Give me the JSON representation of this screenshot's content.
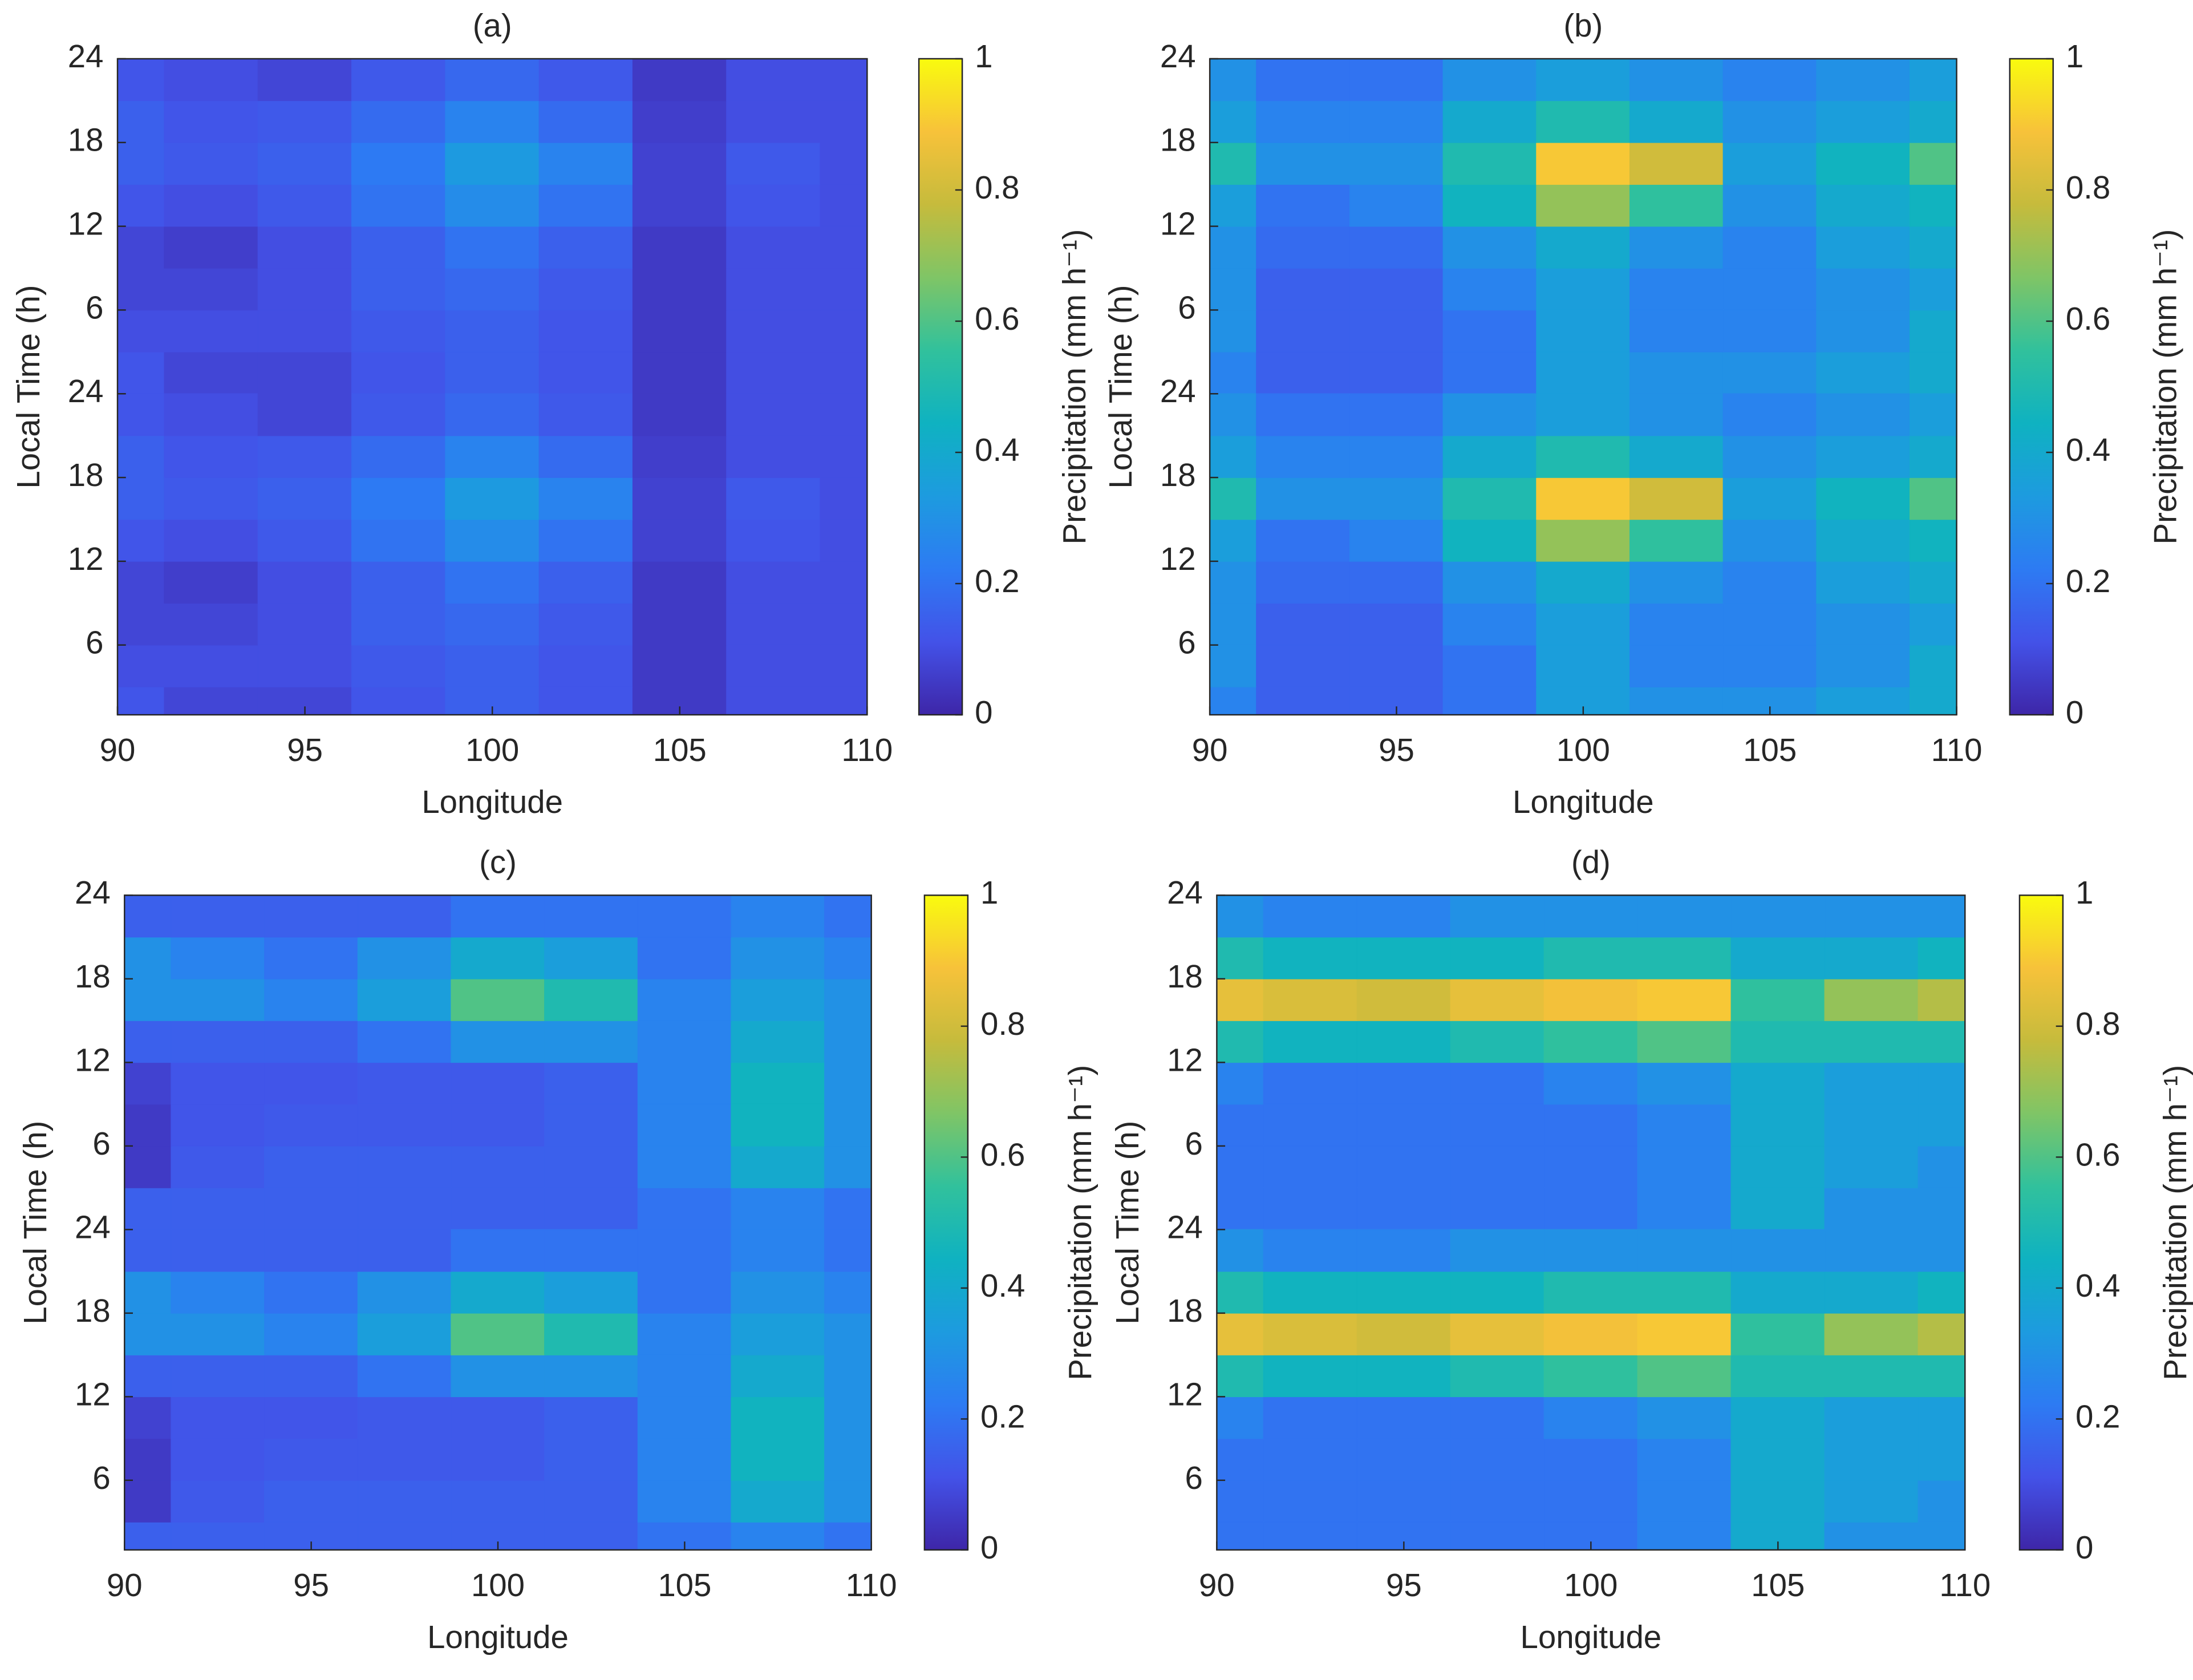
{
  "chart_data": [
    {
      "type": "contour",
      "title": "(a)",
      "xlabel": "Longitude",
      "ylabel": "Local Time (h)",
      "colorbar_label": "Precipitation (mm h⁻¹)",
      "x": [
        90,
        92.5,
        95,
        97.5,
        100,
        102.5,
        105,
        107.5,
        110
      ],
      "y": [
        3,
        6,
        9,
        12,
        15,
        18,
        21,
        24
      ],
      "z": [
        [
          0.12,
          0.08,
          0.08,
          0.12,
          0.15,
          0.12,
          0.05,
          0.1,
          0.1
        ],
        [
          0.1,
          0.1,
          0.1,
          0.13,
          0.15,
          0.12,
          0.05,
          0.1,
          0.1
        ],
        [
          0.08,
          0.08,
          0.1,
          0.15,
          0.17,
          0.13,
          0.05,
          0.1,
          0.1
        ],
        [
          0.08,
          0.06,
          0.1,
          0.15,
          0.2,
          0.15,
          0.05,
          0.1,
          0.1
        ],
        [
          0.12,
          0.1,
          0.13,
          0.2,
          0.28,
          0.2,
          0.07,
          0.12,
          0.1
        ],
        [
          0.15,
          0.13,
          0.15,
          0.22,
          0.33,
          0.25,
          0.07,
          0.13,
          0.1
        ],
        [
          0.15,
          0.12,
          0.13,
          0.18,
          0.25,
          0.18,
          0.06,
          0.1,
          0.1
        ],
        [
          0.12,
          0.1,
          0.08,
          0.13,
          0.17,
          0.13,
          0.05,
          0.1,
          0.1
        ]
      ],
      "xlim": [
        90,
        110
      ],
      "xticks": [
        90,
        95,
        100,
        105,
        110
      ],
      "ylim": [
        1,
        48
      ],
      "yticks": [
        6,
        12,
        18,
        24,
        {
          "value": 30,
          "label": "6"
        },
        {
          "value": 36,
          "label": "12"
        },
        {
          "value": 42,
          "label": "18"
        },
        {
          "value": 48,
          "label": "24"
        }
      ],
      "clim": [
        0,
        1
      ],
      "cticks": [
        0,
        0.2,
        0.4,
        0.6,
        0.8,
        1
      ],
      "colormap": [
        "#3e26a8",
        "#4352e8",
        "#2d7bf3",
        "#1d9bdf",
        "#0fb2c1",
        "#31c19c",
        "#7fc566",
        "#c6bb3c",
        "#f7c23a",
        "#f9fb0e"
      ]
    },
    {
      "type": "contour",
      "title": "(b)",
      "xlabel": "Longitude",
      "ylabel": "Local Time (h)",
      "colorbar_label": "Precipitation (mm h⁻¹)",
      "x": [
        90,
        92.5,
        95,
        97.5,
        100,
        102.5,
        105,
        107.5,
        110
      ],
      "y": [
        3,
        6,
        9,
        12,
        15,
        18,
        21,
        24
      ],
      "z": [
        [
          0.25,
          0.15,
          0.15,
          0.2,
          0.35,
          0.3,
          0.3,
          0.35,
          0.4
        ],
        [
          0.3,
          0.15,
          0.15,
          0.2,
          0.35,
          0.25,
          0.25,
          0.3,
          0.4
        ],
        [
          0.3,
          0.15,
          0.15,
          0.25,
          0.35,
          0.25,
          0.25,
          0.3,
          0.35
        ],
        [
          0.3,
          0.18,
          0.18,
          0.3,
          0.4,
          0.3,
          0.25,
          0.35,
          0.4
        ],
        [
          0.35,
          0.2,
          0.25,
          0.45,
          0.7,
          0.55,
          0.3,
          0.4,
          0.45
        ],
        [
          0.5,
          0.3,
          0.3,
          0.5,
          0.9,
          0.8,
          0.35,
          0.45,
          0.6
        ],
        [
          0.35,
          0.25,
          0.25,
          0.4,
          0.5,
          0.4,
          0.3,
          0.35,
          0.4
        ],
        [
          0.3,
          0.2,
          0.2,
          0.3,
          0.35,
          0.3,
          0.25,
          0.3,
          0.35
        ]
      ],
      "xlim": [
        90,
        110
      ],
      "xticks": [
        90,
        95,
        100,
        105,
        110
      ],
      "ylim": [
        1,
        48
      ],
      "yticks": [
        6,
        12,
        18,
        24,
        {
          "value": 30,
          "label": "6"
        },
        {
          "value": 36,
          "label": "12"
        },
        {
          "value": 42,
          "label": "18"
        },
        {
          "value": 48,
          "label": "24"
        }
      ],
      "clim": [
        0,
        1
      ],
      "cticks": [
        0,
        0.2,
        0.4,
        0.6,
        0.8,
        1
      ],
      "colormap": [
        "#3e26a8",
        "#4352e8",
        "#2d7bf3",
        "#1d9bdf",
        "#0fb2c1",
        "#31c19c",
        "#7fc566",
        "#c6bb3c",
        "#f7c23a",
        "#f9fb0e"
      ]
    },
    {
      "type": "contour",
      "title": "(c)",
      "xlabel": "Longitude",
      "ylabel": "Local Time (h)",
      "colorbar_label": "Precipitation (mm h⁻¹)",
      "x": [
        90,
        92.5,
        95,
        97.5,
        100,
        102.5,
        105,
        107.5,
        110
      ],
      "y": [
        3,
        6,
        9,
        12,
        15,
        18,
        21,
        24
      ],
      "z": [
        [
          0.15,
          0.15,
          0.15,
          0.15,
          0.15,
          0.15,
          0.2,
          0.25,
          0.2
        ],
        [
          0.05,
          0.13,
          0.15,
          0.15,
          0.15,
          0.15,
          0.25,
          0.4,
          0.3
        ],
        [
          0.05,
          0.12,
          0.13,
          0.13,
          0.13,
          0.15,
          0.25,
          0.45,
          0.3
        ],
        [
          0.07,
          0.12,
          0.12,
          0.13,
          0.13,
          0.15,
          0.25,
          0.45,
          0.3
        ],
        [
          0.15,
          0.15,
          0.15,
          0.2,
          0.3,
          0.3,
          0.25,
          0.4,
          0.3
        ],
        [
          0.3,
          0.3,
          0.25,
          0.35,
          0.6,
          0.5,
          0.25,
          0.35,
          0.3
        ],
        [
          0.3,
          0.25,
          0.2,
          0.3,
          0.4,
          0.35,
          0.2,
          0.3,
          0.25
        ],
        [
          0.15,
          0.15,
          0.15,
          0.15,
          0.2,
          0.2,
          0.2,
          0.25,
          0.2
        ]
      ],
      "xlim": [
        90,
        110
      ],
      "xticks": [
        90,
        95,
        100,
        105,
        110
      ],
      "ylim": [
        1,
        48
      ],
      "yticks": [
        6,
        12,
        18,
        24,
        {
          "value": 30,
          "label": "6"
        },
        {
          "value": 36,
          "label": "12"
        },
        {
          "value": 42,
          "label": "18"
        },
        {
          "value": 48,
          "label": "24"
        }
      ],
      "clim": [
        0,
        1
      ],
      "cticks": [
        0,
        0.2,
        0.4,
        0.6,
        0.8,
        1
      ],
      "colormap": [
        "#3e26a8",
        "#4352e8",
        "#2d7bf3",
        "#1d9bdf",
        "#0fb2c1",
        "#31c19c",
        "#7fc566",
        "#c6bb3c",
        "#f7c23a",
        "#f9fb0e"
      ]
    },
    {
      "type": "contour",
      "title": "(d)",
      "xlabel": "Longitude",
      "ylabel": "Local Time (h)",
      "colorbar_label": "Precipitation (mm h⁻¹)",
      "x": [
        90,
        92.5,
        95,
        97.5,
        100,
        102.5,
        105,
        107.5,
        110
      ],
      "y": [
        3,
        6,
        9,
        12,
        15,
        18,
        21,
        24
      ],
      "z": [
        [
          0.2,
          0.2,
          0.2,
          0.2,
          0.2,
          0.25,
          0.4,
          0.3,
          0.3
        ],
        [
          0.2,
          0.2,
          0.2,
          0.2,
          0.2,
          0.25,
          0.4,
          0.35,
          0.3
        ],
        [
          0.2,
          0.2,
          0.2,
          0.2,
          0.2,
          0.25,
          0.4,
          0.35,
          0.35
        ],
        [
          0.25,
          0.2,
          0.2,
          0.2,
          0.25,
          0.3,
          0.4,
          0.35,
          0.35
        ],
        [
          0.5,
          0.45,
          0.45,
          0.5,
          0.55,
          0.6,
          0.5,
          0.5,
          0.5
        ],
        [
          0.85,
          0.82,
          0.8,
          0.85,
          0.88,
          0.9,
          0.55,
          0.7,
          0.75
        ],
        [
          0.5,
          0.45,
          0.45,
          0.45,
          0.5,
          0.5,
          0.4,
          0.4,
          0.45
        ],
        [
          0.3,
          0.25,
          0.25,
          0.3,
          0.3,
          0.3,
          0.3,
          0.3,
          0.3
        ]
      ],
      "xlim": [
        90,
        110
      ],
      "xticks": [
        90,
        95,
        100,
        105,
        110
      ],
      "ylim": [
        1,
        48
      ],
      "yticks": [
        6,
        12,
        18,
        24,
        {
          "value": 30,
          "label": "6"
        },
        {
          "value": 36,
          "label": "12"
        },
        {
          "value": 42,
          "label": "18"
        },
        {
          "value": 48,
          "label": "24"
        }
      ],
      "clim": [
        0,
        1
      ],
      "cticks": [
        0,
        0.2,
        0.4,
        0.6,
        0.8,
        1
      ],
      "colormap": [
        "#3e26a8",
        "#4352e8",
        "#2d7bf3",
        "#1d9bdf",
        "#0fb2c1",
        "#31c19c",
        "#7fc566",
        "#c6bb3c",
        "#f7c23a",
        "#f9fb0e"
      ]
    }
  ]
}
